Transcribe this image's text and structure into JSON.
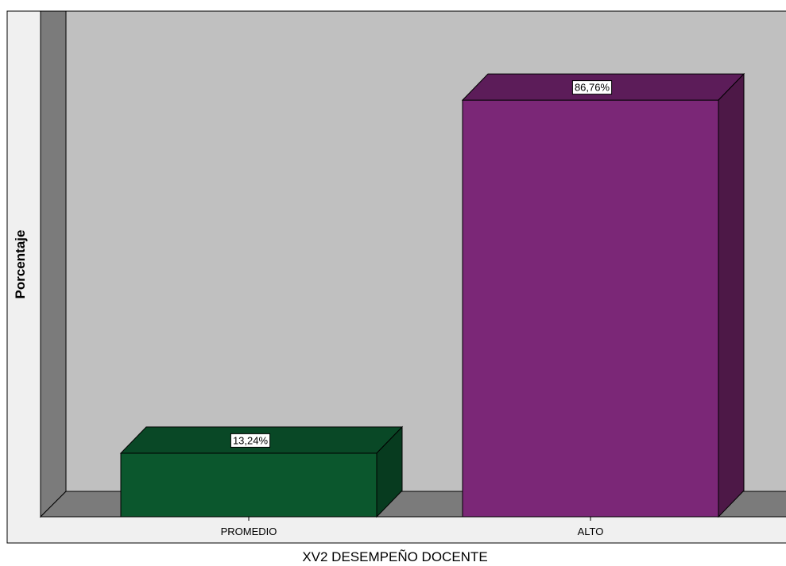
{
  "chart_data": {
    "type": "bar",
    "categories": [
      "PROMEDIO",
      "ALTO"
    ],
    "values": [
      13.24,
      86.76
    ],
    "data_labels": [
      "13,24%",
      "86,76%"
    ],
    "xlabel": "XV2  DESEMPEÑO DOCENTE",
    "ylabel": "Porcentaje",
    "ylim": [
      0,
      100
    ],
    "grid": false,
    "legend": "none",
    "style": "3d",
    "colors": {
      "bars": [
        "#0b572d",
        "#7b2777"
      ],
      "bars_side": [
        "#073b1f",
        "#4d1847"
      ],
      "bars_top": [
        "#094826",
        "#5c1c59"
      ],
      "plot_back": "#c0c0c0",
      "plot_floor": "#7b7b7b",
      "plot_wall": "#7b7b7b",
      "outer_panel": "#f0f0f0"
    }
  }
}
